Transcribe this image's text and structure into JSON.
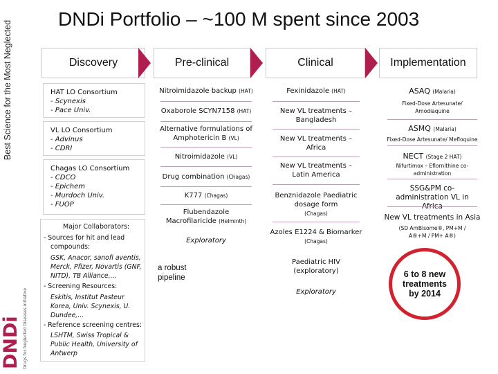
{
  "sidebar": {
    "tagline": "Best Science for the Most Neglected",
    "logo_text": "DNDi",
    "logo_sub": "Drugs for Neglected Diseases initiative"
  },
  "title": "DNDi Portfolio – ~100 M spent since 2003",
  "phases": [
    "Discovery",
    "Pre-clinical",
    "Clinical",
    "Implementation"
  ],
  "colors": {
    "arrow": "#b01e4e",
    "logo": "#b01e4e",
    "separator": "#b9a0b8"
  },
  "discovery": {
    "hat": [
      "HAT LO Consortium",
      "- Scynexis",
      "- Pace Univ."
    ],
    "vl": [
      "VL LO Consortium",
      "- Advinus",
      "- CDRI"
    ],
    "chagas": [
      "Chagas LO Consortium",
      "- CDCO",
      "- Epichem",
      "- Murdoch Univ.",
      "- FUOP"
    ],
    "collab_title": "Major Collaborators:",
    "collab_lines": [
      "- Sources for hit and lead",
      "compounds:",
      "GSK, Anacor, sanofi aventis,",
      "Merck, Pfizer, Novartis (GNF,",
      "NITD), TB Alliance,…",
      "- Screening Resources:",
      "Eskitis, Institut Pasteur",
      "Korea, Univ. Scynexis, U.",
      "Dundee,…",
      "- Reference screening centres:",
      "LSHTM, Swiss Tropical &",
      "Public Health, University of",
      "Antwerp"
    ]
  },
  "preclinical": {
    "items": [
      {
        "main": "Nitroimidazole backup",
        "tag": "(HAT)"
      },
      {
        "main": "Oxaborole SCYN7158",
        "tag": "(HAT)"
      },
      {
        "main": "Alternative formulations of Amphotericin B",
        "tag": "(VL)"
      },
      {
        "main": "Nitroimidazole",
        "tag": "(VL)"
      },
      {
        "main": "Drug combination",
        "tag": "(Chagas)"
      },
      {
        "main": "K777",
        "tag": "(Chagas)"
      },
      {
        "main": "Flubendazole Macrofilaricide",
        "tag": "(Helminth)"
      }
    ],
    "exploratory": "Exploratory",
    "note": "a robust pipeline"
  },
  "clinical": {
    "items": [
      {
        "main": "Fexinidazole",
        "tag": "(HAT)"
      },
      {
        "main": "New VL treatments – Bangladesh",
        "tag": ""
      },
      {
        "main": "New VL treatments – Africa",
        "tag": ""
      },
      {
        "main": "New VL treatments – Latin America",
        "tag": ""
      },
      {
        "main": "Benznidazole Paediatric dosage form",
        "tag": "(Chagas)"
      },
      {
        "main": "Azoles E1224 & Biomarker",
        "tag": "(Chagas)"
      },
      {
        "main": "Paediatric HIV (exploratory)",
        "tag": ""
      }
    ],
    "exploratory": "Exploratory"
  },
  "implementation": {
    "items": [
      {
        "main": "ASAQ",
        "tag": "(Malaria)",
        "sub": "Fixed-Dose Artesunate/ Amodiaquine"
      },
      {
        "main": "ASMQ",
        "tag": "(Malaria)",
        "sub": "Fixed-Dose Artesunate/ Mefloquine"
      },
      {
        "main": "NECT",
        "tag": "(Stage 2 HAT)",
        "sub": "Nifurtimox – Eflornithine co-administration"
      },
      {
        "main": "SSG&PM co-administration VL in Africa",
        "tag": "",
        "sub": ""
      },
      {
        "main": "New VL treatments in Asia",
        "tag": "",
        "sub": "(SD AmBisome®, PM+M / A®+M / PM+ A®)"
      }
    ],
    "callout": "6 to 8 new treatments by 2014"
  }
}
